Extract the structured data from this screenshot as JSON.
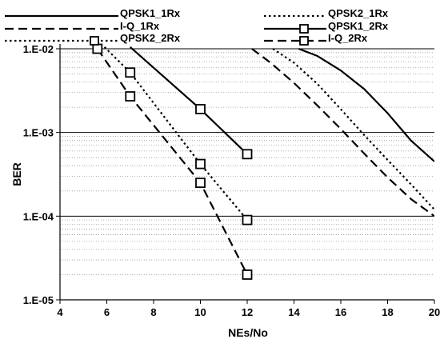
{
  "chart_data": {
    "type": "line",
    "xlabel": "NEs/No",
    "ylabel": "BER",
    "xlim": [
      4,
      20
    ],
    "ylim": [
      1e-05,
      0.01
    ],
    "y_scale": "log",
    "x_ticks": [
      4,
      6,
      8,
      10,
      12,
      14,
      16,
      18,
      20
    ],
    "x_tick_labels": [
      "4",
      "6",
      "8",
      "10",
      "12",
      "14",
      "16",
      "18",
      "20"
    ],
    "y_ticks": [
      0.01,
      0.001,
      0.0001,
      1e-05
    ],
    "y_tick_labels": [
      "1.E-02",
      "1.E-03",
      "1.E-04",
      "1.E-05"
    ],
    "grid": "on",
    "legend_position": "top",
    "series": [
      {
        "name": "QPSK1_1Rx",
        "style": "solid",
        "marker": "none",
        "x": [
          14.2,
          15,
          16,
          17,
          18,
          19,
          20
        ],
        "y": [
          0.01,
          0.0082,
          0.0055,
          0.0033,
          0.0017,
          0.0008,
          0.00045
        ]
      },
      {
        "name": "QPSK2_1Rx",
        "style": "dotted",
        "marker": "none",
        "x": [
          13.1,
          14,
          15,
          16,
          17,
          18,
          19,
          20
        ],
        "y": [
          0.01,
          0.0068,
          0.0038,
          0.0019,
          0.00093,
          0.00047,
          0.00024,
          0.00012
        ]
      },
      {
        "name": "I-Q_1Rx",
        "style": "dashed",
        "marker": "none",
        "x": [
          12.2,
          13,
          14,
          15,
          16,
          17,
          18,
          19,
          20
        ],
        "y": [
          0.01,
          0.0068,
          0.0039,
          0.0021,
          0.0011,
          0.00056,
          0.00029,
          0.00016,
          0.0001
        ]
      },
      {
        "name": "QPSK1_2Rx",
        "style": "solid",
        "marker": "square",
        "x": [
          7,
          10,
          12
        ],
        "y": [
          0.0105,
          0.0019,
          0.00055
        ]
      },
      {
        "name": "I-Q_2Rx",
        "style": "dashed",
        "marker": "square",
        "x": [
          5.6,
          7,
          10,
          12
        ],
        "y": [
          0.01,
          0.0027,
          0.00025,
          2e-05
        ]
      },
      {
        "name": "QPSK2_2Rx",
        "style": "dotted",
        "marker": "square",
        "x": [
          5.9,
          7,
          10,
          12
        ],
        "y": [
          0.0105,
          0.0052,
          0.00042,
          9e-05
        ]
      }
    ],
    "legend_rows": [
      [
        "QPSK1_1Rx",
        "QPSK2_1Rx"
      ],
      [
        "I-Q_1Rx",
        "QPSK1_2Rx"
      ],
      [
        "QPSK2_2Rx",
        "I-Q_2Rx"
      ]
    ]
  }
}
